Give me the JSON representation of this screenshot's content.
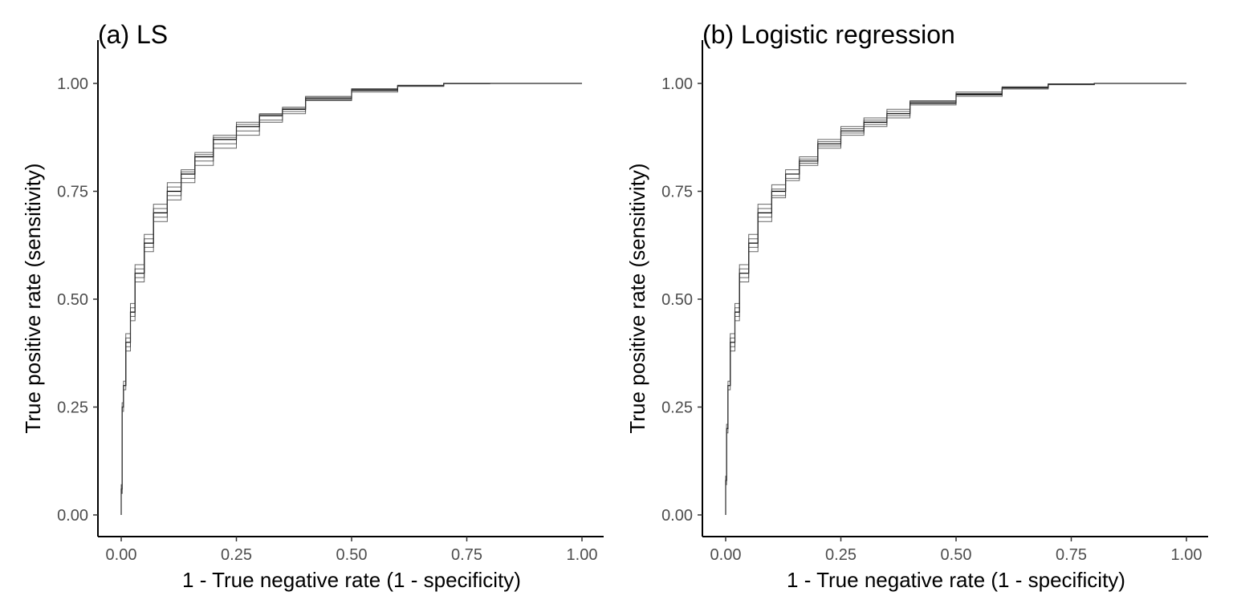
{
  "chart_data": [
    {
      "type": "line",
      "title": "(a) LS",
      "xlabel": "1 - True negative rate (1 - specificity)",
      "ylabel": "True positive rate (sensitivity)",
      "xlim": [
        -0.05,
        1.05
      ],
      "ylim": [
        -0.05,
        1.0
      ],
      "x_ticks": [
        "0.00",
        "0.25",
        "0.50",
        "0.75",
        "1.00"
      ],
      "y_ticks": [
        "0.00",
        "0.25",
        "0.50",
        "0.75",
        "1.00"
      ],
      "grid": false,
      "line_color": "#333333",
      "series": [
        {
          "x": [
            0,
            0.002,
            0.005,
            0.01,
            0.02,
            0.03,
            0.05,
            0.07,
            0.1,
            0.13,
            0.16,
            0.2,
            0.25,
            0.3,
            0.35,
            0.4,
            0.5,
            0.6,
            0.7,
            0.8,
            0.9,
            1.0
          ],
          "y": [
            0,
            0.06,
            0.25,
            0.3,
            0.4,
            0.47,
            0.56,
            0.63,
            0.7,
            0.75,
            0.79,
            0.83,
            0.87,
            0.9,
            0.925,
            0.94,
            0.965,
            0.985,
            0.995,
            1.0,
            1.0,
            1.0
          ]
        },
        {
          "x": [
            0,
            0.002,
            0.005,
            0.01,
            0.02,
            0.03,
            0.05,
            0.07,
            0.1,
            0.13,
            0.16,
            0.2,
            0.25,
            0.3,
            0.35,
            0.4,
            0.5,
            0.6,
            0.7,
            0.8,
            0.9,
            1.0
          ],
          "y": [
            0,
            0.05,
            0.24,
            0.29,
            0.38,
            0.45,
            0.54,
            0.61,
            0.68,
            0.73,
            0.77,
            0.81,
            0.85,
            0.88,
            0.91,
            0.93,
            0.96,
            0.98,
            0.993,
            1.0,
            1.0,
            1.0
          ]
        },
        {
          "x": [
            0,
            0.002,
            0.005,
            0.01,
            0.02,
            0.03,
            0.05,
            0.07,
            0.1,
            0.13,
            0.16,
            0.2,
            0.25,
            0.3,
            0.35,
            0.4,
            0.5,
            0.6,
            0.7,
            0.8,
            0.9,
            1.0
          ],
          "y": [
            0,
            0.07,
            0.26,
            0.31,
            0.42,
            0.49,
            0.58,
            0.65,
            0.72,
            0.77,
            0.8,
            0.84,
            0.88,
            0.91,
            0.93,
            0.945,
            0.97,
            0.988,
            0.996,
            1.0,
            1.0,
            1.0
          ]
        },
        {
          "x": [
            0,
            0.002,
            0.005,
            0.01,
            0.02,
            0.03,
            0.05,
            0.07,
            0.1,
            0.13,
            0.16,
            0.2,
            0.25,
            0.3,
            0.35,
            0.4,
            0.5,
            0.6,
            0.7,
            0.8,
            0.9,
            1.0
          ],
          "y": [
            0,
            0.06,
            0.25,
            0.3,
            0.39,
            0.46,
            0.55,
            0.62,
            0.69,
            0.74,
            0.78,
            0.82,
            0.86,
            0.89,
            0.915,
            0.935,
            0.962,
            0.983,
            0.994,
            0.999,
            1.0,
            1.0
          ]
        },
        {
          "x": [
            0,
            0.002,
            0.005,
            0.01,
            0.02,
            0.03,
            0.05,
            0.07,
            0.1,
            0.13,
            0.16,
            0.2,
            0.25,
            0.3,
            0.35,
            0.4,
            0.5,
            0.6,
            0.7,
            0.8,
            0.9,
            1.0
          ],
          "y": [
            0,
            0.05,
            0.25,
            0.3,
            0.41,
            0.48,
            0.57,
            0.64,
            0.71,
            0.76,
            0.795,
            0.835,
            0.875,
            0.905,
            0.928,
            0.942,
            0.968,
            0.986,
            0.995,
            1.0,
            1.0,
            1.0
          ]
        }
      ]
    },
    {
      "type": "line",
      "title": "(b) Logistic regression",
      "xlabel": "1 - True negative rate (1 - specificity)",
      "ylabel": "True positive rate (sensitivity)",
      "xlim": [
        -0.05,
        1.05
      ],
      "ylim": [
        -0.05,
        1.0
      ],
      "x_ticks": [
        "0.00",
        "0.25",
        "0.50",
        "0.75",
        "1.00"
      ],
      "y_ticks": [
        "0.00",
        "0.25",
        "0.50",
        "0.75",
        "1.00"
      ],
      "grid": false,
      "line_color": "#333333",
      "series": [
        {
          "x": [
            0,
            0.002,
            0.005,
            0.01,
            0.02,
            0.03,
            0.05,
            0.07,
            0.1,
            0.13,
            0.16,
            0.2,
            0.25,
            0.3,
            0.35,
            0.4,
            0.5,
            0.6,
            0.7,
            0.8,
            0.9,
            1.0
          ],
          "y": [
            0,
            0.08,
            0.2,
            0.3,
            0.4,
            0.47,
            0.56,
            0.63,
            0.7,
            0.75,
            0.79,
            0.82,
            0.86,
            0.89,
            0.91,
            0.93,
            0.955,
            0.975,
            0.99,
            0.998,
            1.0,
            1.0
          ]
        },
        {
          "x": [
            0,
            0.002,
            0.005,
            0.01,
            0.02,
            0.03,
            0.05,
            0.07,
            0.1,
            0.13,
            0.16,
            0.2,
            0.25,
            0.3,
            0.35,
            0.4,
            0.5,
            0.6,
            0.7,
            0.8,
            0.9,
            1.0
          ],
          "y": [
            0,
            0.07,
            0.19,
            0.29,
            0.38,
            0.45,
            0.54,
            0.61,
            0.68,
            0.735,
            0.775,
            0.81,
            0.85,
            0.88,
            0.9,
            0.92,
            0.95,
            0.97,
            0.987,
            0.997,
            1.0,
            1.0
          ]
        },
        {
          "x": [
            0,
            0.002,
            0.005,
            0.01,
            0.02,
            0.03,
            0.05,
            0.07,
            0.1,
            0.13,
            0.16,
            0.2,
            0.25,
            0.3,
            0.35,
            0.4,
            0.5,
            0.6,
            0.7,
            0.8,
            0.9,
            1.0
          ],
          "y": [
            0,
            0.09,
            0.21,
            0.31,
            0.42,
            0.49,
            0.58,
            0.65,
            0.72,
            0.765,
            0.8,
            0.83,
            0.87,
            0.9,
            0.92,
            0.94,
            0.96,
            0.98,
            0.992,
            0.999,
            1.0,
            1.0
          ]
        },
        {
          "x": [
            0,
            0.002,
            0.005,
            0.01,
            0.02,
            0.03,
            0.05,
            0.07,
            0.1,
            0.13,
            0.16,
            0.2,
            0.25,
            0.3,
            0.35,
            0.4,
            0.5,
            0.6,
            0.7,
            0.8,
            0.9,
            1.0
          ],
          "y": [
            0,
            0.08,
            0.2,
            0.3,
            0.39,
            0.46,
            0.55,
            0.62,
            0.69,
            0.74,
            0.78,
            0.815,
            0.855,
            0.885,
            0.905,
            0.925,
            0.953,
            0.973,
            0.989,
            0.998,
            1.0,
            1.0
          ]
        },
        {
          "x": [
            0,
            0.002,
            0.005,
            0.01,
            0.02,
            0.03,
            0.05,
            0.07,
            0.1,
            0.13,
            0.16,
            0.2,
            0.25,
            0.3,
            0.35,
            0.4,
            0.5,
            0.6,
            0.7,
            0.8,
            0.9,
            1.0
          ],
          "y": [
            0,
            0.08,
            0.2,
            0.3,
            0.41,
            0.48,
            0.57,
            0.64,
            0.71,
            0.755,
            0.79,
            0.825,
            0.865,
            0.895,
            0.915,
            0.935,
            0.958,
            0.977,
            0.991,
            0.999,
            1.0,
            1.0
          ]
        }
      ]
    }
  ]
}
